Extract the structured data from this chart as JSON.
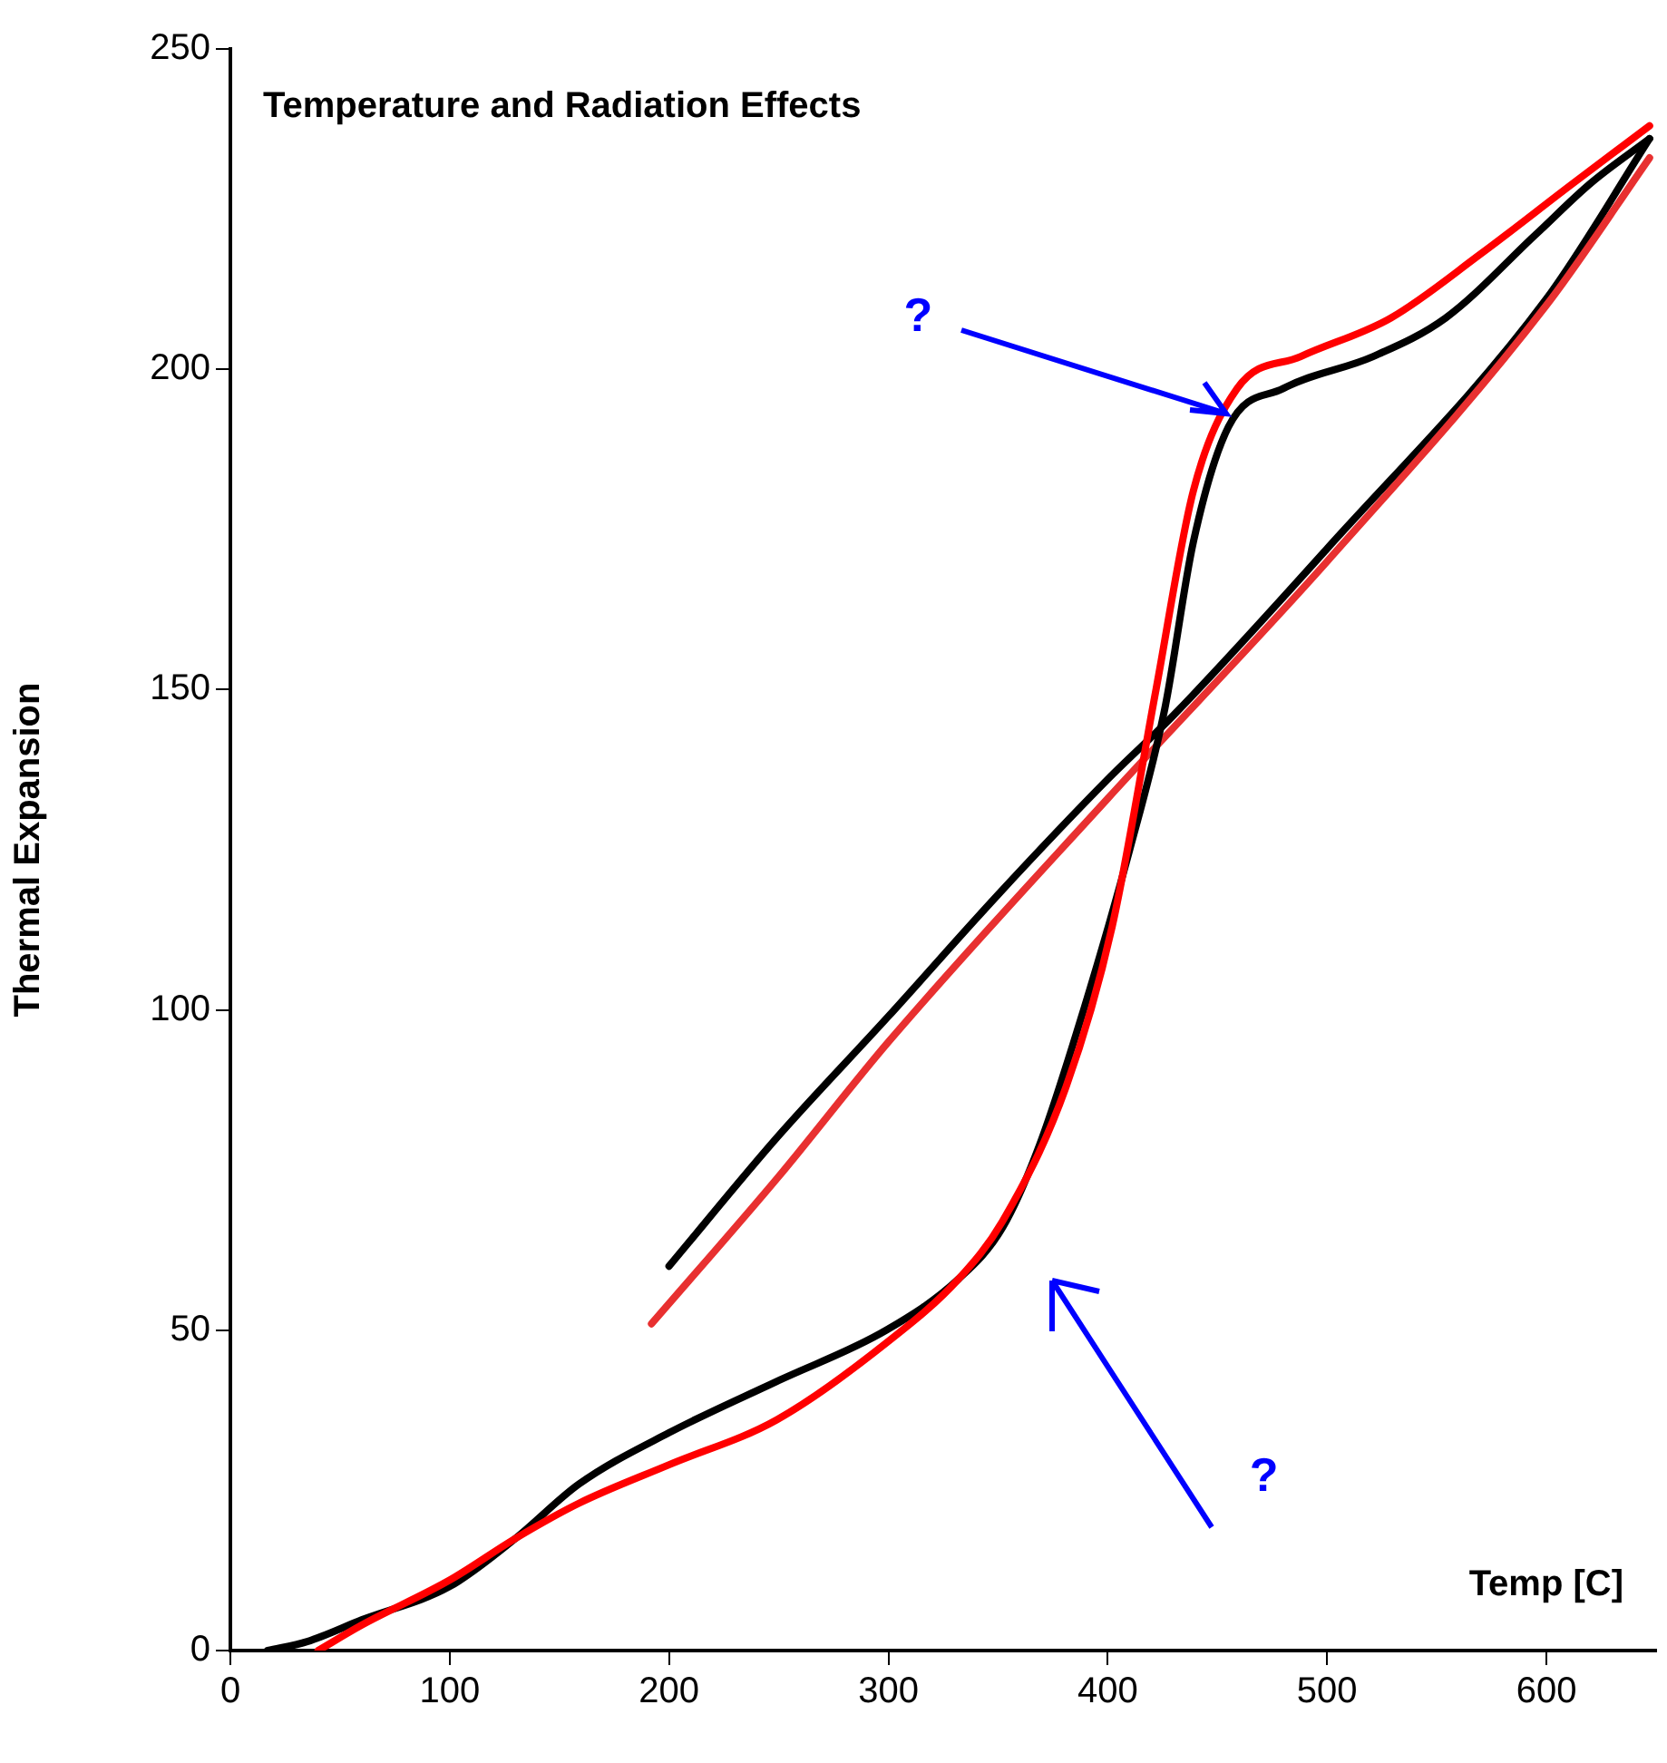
{
  "chart_data": {
    "type": "line",
    "title": "Temperature and Radiation Effects",
    "xlabel": "Temp [C]",
    "ylabel": "Thermal Expansion",
    "xlim": [
      0,
      650
    ],
    "ylim": [
      0,
      250
    ],
    "xticks": [
      0,
      100,
      200,
      300,
      400,
      500,
      600
    ],
    "yticks": [
      0,
      50,
      100,
      150,
      200,
      250
    ],
    "grid": false,
    "legend": false,
    "marker": "none",
    "line_style": "solid",
    "series": [
      {
        "color": "#ff0000",
        "x": [
          40,
          60,
          100,
          130,
          159,
          200,
          249,
          299,
          332,
          352,
          381,
          402,
          422,
          439,
          459,
          488,
          529,
          570,
          612,
          647
        ],
        "values": [
          0,
          4,
          11,
          17.5,
          23,
          29,
          36,
          48,
          58,
          67,
          88,
          113,
          150,
          181,
          197,
          202,
          208,
          218,
          229,
          238
        ]
      },
      {
        "color": "#000000",
        "x": [
          17,
          35,
          60,
          100,
          130,
          159,
          200,
          249,
          299,
          332,
          352,
          369,
          389,
          410,
          426,
          439,
          455,
          480,
          521,
          554,
          595,
          620,
          647
        ],
        "values": [
          0,
          1.4,
          4.8,
          10,
          17.5,
          26,
          34,
          42,
          50,
          58,
          66,
          79,
          100,
          125,
          147,
          173,
          191,
          197,
          202,
          208,
          221,
          229,
          236
        ]
      },
      {
        "color": "#e83030",
        "x": [
          192,
          250,
          300,
          400,
          500,
          600,
          647
        ],
        "values": [
          51,
          74,
          95,
          133,
          170,
          210,
          233
        ]
      },
      {
        "color": "#000000",
        "x": [
          200,
          249,
          300,
          350,
          400,
          430,
          500,
          600,
          647
        ],
        "values": [
          60,
          80,
          99,
          118,
          136,
          146,
          172,
          211,
          236
        ]
      }
    ],
    "annotations": [
      {
        "text": "?",
        "x": 455,
        "y": 193
      },
      "?"
    ]
  }
}
